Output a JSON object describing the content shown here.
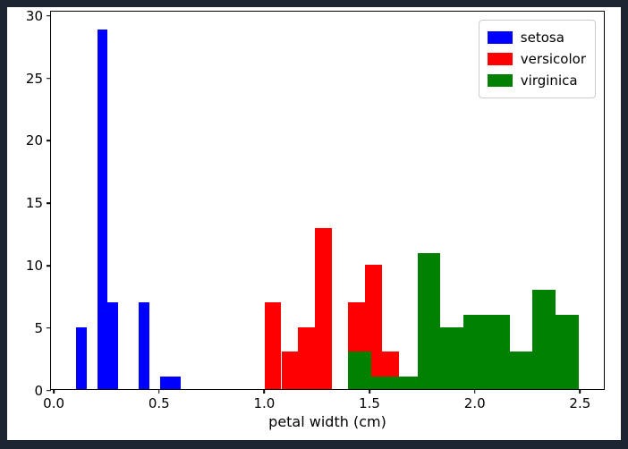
{
  "frame": {
    "background_color": "#1b2430",
    "figure_background": "#ffffff"
  },
  "chart_data": {
    "type": "bar",
    "subtype": "histogram",
    "title": "",
    "xlabel": "petal width (cm)",
    "ylabel": "",
    "xlim": [
      -0.02,
      2.62
    ],
    "ylim": [
      0,
      30.45
    ],
    "grid": false,
    "xticks": [
      0.0,
      0.5,
      1.0,
      1.5,
      2.0,
      2.5
    ],
    "xtick_labels": [
      "0.0",
      "0.5",
      "1.0",
      "1.5",
      "2.0",
      "2.5"
    ],
    "yticks": [
      0,
      5,
      10,
      15,
      20,
      25,
      30
    ],
    "ytick_labels": [
      "0",
      "5",
      "10",
      "15",
      "20",
      "25",
      "30"
    ],
    "legend": {
      "position": "upper right",
      "entries": [
        "setosa",
        "versicolor",
        "virginica"
      ]
    },
    "series": [
      {
        "name": "setosa",
        "color": "#0000ff",
        "bin_start": 0.1,
        "bin_width": 0.05,
        "counts": [
          5,
          0,
          29,
          7,
          0,
          0,
          7,
          0,
          1,
          1
        ]
      },
      {
        "name": "versicolor",
        "color": "#ff0000",
        "bin_start": 1.0,
        "bin_width": 0.08,
        "counts": [
          7,
          3,
          5,
          13,
          0,
          7,
          10,
          3,
          1,
          1
        ]
      },
      {
        "name": "virginica",
        "color": "#008000",
        "bin_start": 1.4,
        "bin_width": 0.11,
        "counts": [
          3,
          1,
          1,
          11,
          5,
          6,
          6,
          3,
          8,
          6
        ]
      }
    ]
  }
}
